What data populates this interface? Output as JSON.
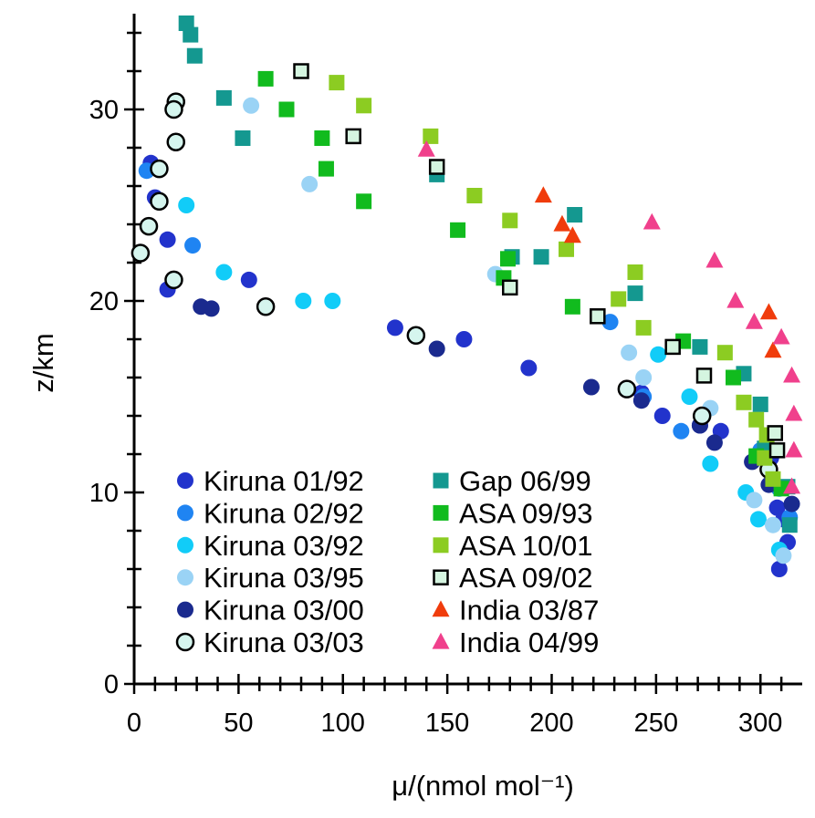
{
  "chart_data": {
    "type": "scatter",
    "xlabel": "μ/(nmol mol⁻¹)",
    "ylabel": "z/km",
    "xlim": [
      0,
      320
    ],
    "ylim": [
      0,
      35
    ],
    "xticks": [
      "0",
      "50",
      "100",
      "150",
      "200",
      "250",
      "300"
    ],
    "yticks": [
      "0",
      "10",
      "20",
      "30"
    ],
    "grid": false,
    "legend_placement": "bottom-left",
    "series": [
      {
        "name": "Kiruna 01/92",
        "marker": "circle",
        "color": "#2233cc",
        "edge": "none",
        "points": [
          [
            8,
            27.2
          ],
          [
            10,
            25.4
          ],
          [
            16,
            23.2
          ],
          [
            16,
            20.6
          ],
          [
            55,
            21.1
          ],
          [
            125,
            18.6
          ],
          [
            158,
            18.0
          ],
          [
            189,
            16.5
          ],
          [
            243,
            15.2
          ],
          [
            253,
            14.0
          ],
          [
            271,
            13.5
          ],
          [
            281,
            13.2
          ],
          [
            305,
            11.8
          ],
          [
            308,
            9.2
          ],
          [
            311,
            8.6
          ],
          [
            313,
            7.4
          ],
          [
            309,
            6.0
          ]
        ]
      },
      {
        "name": "Kiruna 02/92",
        "marker": "circle",
        "color": "#1f84f2",
        "edge": "none",
        "points": [
          [
            6,
            26.8
          ],
          [
            28,
            22.9
          ],
          [
            228,
            18.9
          ],
          [
            244,
            15.0
          ],
          [
            262,
            13.2
          ],
          [
            300,
            12.2
          ],
          [
            309,
            10.2
          ],
          [
            314,
            8.7
          ]
        ]
      },
      {
        "name": "Kiruna 03/92",
        "marker": "circle",
        "color": "#11ccf8",
        "edge": "none",
        "points": [
          [
            25,
            25.0
          ],
          [
            43,
            21.5
          ],
          [
            81,
            20.0
          ],
          [
            95,
            20.0
          ],
          [
            251,
            17.2
          ],
          [
            266,
            15.0
          ],
          [
            276,
            11.5
          ],
          [
            293,
            10.0
          ],
          [
            299,
            8.6
          ],
          [
            309,
            7.0
          ]
        ]
      },
      {
        "name": "Kiruna 03/95",
        "marker": "circle",
        "color": "#9ad3f5",
        "edge": "none",
        "points": [
          [
            56,
            30.2
          ],
          [
            84,
            26.1
          ],
          [
            173,
            21.4
          ],
          [
            237,
            17.3
          ],
          [
            244,
            16.0
          ],
          [
            276,
            14.4
          ],
          [
            297,
            9.6
          ],
          [
            306,
            8.3
          ],
          [
            311,
            6.7
          ]
        ]
      },
      {
        "name": "Kiruna 03/00",
        "marker": "circle",
        "color": "#1a2a8e",
        "edge": "none",
        "points": [
          [
            32,
            19.7
          ],
          [
            37,
            19.6
          ],
          [
            145,
            17.5
          ],
          [
            219,
            15.5
          ],
          [
            243,
            14.8
          ],
          [
            271,
            13.5
          ],
          [
            278,
            12.6
          ],
          [
            296,
            11.6
          ],
          [
            304,
            10.4
          ],
          [
            315,
            9.4
          ]
        ]
      },
      {
        "name": "Kiruna 03/03",
        "marker": "circle",
        "color": "#d5f5ee",
        "edge": "#000000",
        "points": [
          [
            20,
            30.4
          ],
          [
            19,
            30.0
          ],
          [
            20,
            28.3
          ],
          [
            12,
            26.9
          ],
          [
            12,
            25.2
          ],
          [
            7,
            23.9
          ],
          [
            3,
            22.5
          ],
          [
            19,
            21.1
          ],
          [
            63,
            19.7
          ],
          [
            135,
            18.2
          ],
          [
            236,
            15.4
          ],
          [
            272,
            14.0
          ],
          [
            304,
            11.2
          ]
        ]
      },
      {
        "name": "Gap 06/99",
        "marker": "square",
        "color": "#149890",
        "edge": "none",
        "points": [
          [
            25,
            34.5
          ],
          [
            27,
            33.9
          ],
          [
            29,
            32.8
          ],
          [
            43,
            30.6
          ],
          [
            52,
            28.5
          ],
          [
            145,
            26.6
          ],
          [
            211,
            24.5
          ],
          [
            181,
            22.3
          ],
          [
            195,
            22.3
          ],
          [
            240,
            20.4
          ],
          [
            271,
            17.6
          ],
          [
            292,
            16.2
          ],
          [
            300,
            14.6
          ],
          [
            302,
            12.3
          ],
          [
            313,
            10.3
          ],
          [
            314,
            8.3
          ]
        ]
      },
      {
        "name": "ASA 09/93",
        "marker": "square",
        "color": "#11bb1e",
        "edge": "none",
        "points": [
          [
            63,
            31.6
          ],
          [
            73,
            30.0
          ],
          [
            90,
            28.5
          ],
          [
            92,
            26.9
          ],
          [
            110,
            25.2
          ],
          [
            155,
            23.7
          ],
          [
            179,
            22.2
          ],
          [
            177,
            21.2
          ],
          [
            210,
            19.7
          ],
          [
            263,
            17.9
          ],
          [
            287,
            16.0
          ],
          [
            298,
            11.9
          ],
          [
            310,
            10.2
          ]
        ]
      },
      {
        "name": "ASA 10/01",
        "marker": "square",
        "color": "#8ccc22",
        "edge": "none",
        "points": [
          [
            97,
            31.4
          ],
          [
            110,
            30.2
          ],
          [
            142,
            28.6
          ],
          [
            163,
            25.5
          ],
          [
            180,
            24.2
          ],
          [
            207,
            22.7
          ],
          [
            240,
            21.5
          ],
          [
            232,
            20.1
          ],
          [
            244,
            18.6
          ],
          [
            283,
            17.3
          ],
          [
            292,
            14.7
          ],
          [
            298,
            13.8
          ],
          [
            303,
            13.0
          ],
          [
            302,
            11.8
          ],
          [
            306,
            10.7
          ]
        ]
      },
      {
        "name": "ASA 09/02",
        "marker": "square",
        "color": "#d5f5e0",
        "edge": "#000000",
        "points": [
          [
            80,
            32.0
          ],
          [
            105,
            28.6
          ],
          [
            145,
            27.0
          ],
          [
            180,
            20.7
          ],
          [
            222,
            19.2
          ],
          [
            258,
            17.6
          ],
          [
            273,
            16.1
          ],
          [
            307,
            13.1
          ],
          [
            308,
            12.2
          ]
        ]
      },
      {
        "name": "India 03/87",
        "marker": "triangle",
        "color": "#f03c0c",
        "edge": "none",
        "points": [
          [
            196,
            25.5
          ],
          [
            205,
            24.0
          ],
          [
            210,
            23.4
          ],
          [
            304,
            19.4
          ],
          [
            306,
            17.4
          ]
        ]
      },
      {
        "name": "India 04/99",
        "marker": "triangle",
        "color": "#f0408c",
        "edge": "none",
        "points": [
          [
            140,
            27.9
          ],
          [
            248,
            24.1
          ],
          [
            278,
            22.1
          ],
          [
            288,
            20.0
          ],
          [
            297,
            18.9
          ],
          [
            310,
            18.1
          ],
          [
            315,
            16.1
          ],
          [
            316,
            14.1
          ],
          [
            316,
            12.2
          ],
          [
            315,
            10.3
          ]
        ]
      }
    ]
  }
}
